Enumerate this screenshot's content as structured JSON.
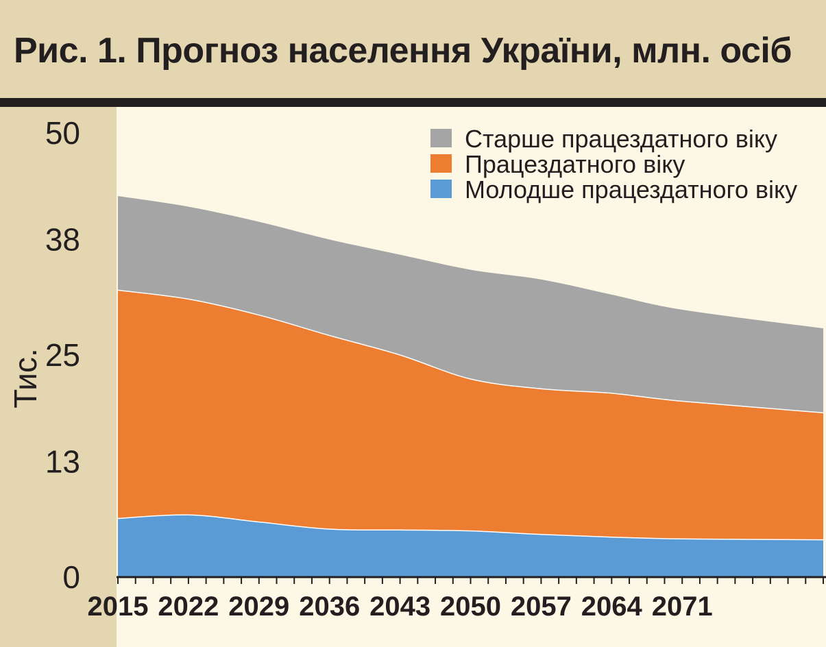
{
  "title": "Рис. 1. Прогноз населення України, млн. осіб",
  "chart_data": {
    "type": "area",
    "stacked": true,
    "title": "Рис. 1. Прогноз населення України, млн. осіб",
    "ylabel": "Тис.",
    "xlabel": "",
    "ylim": [
      0,
      50
    ],
    "y_ticks": [
      "0",
      "13",
      "25",
      "38",
      "50"
    ],
    "x_ticks": [
      "2015",
      "2022",
      "2029",
      "2036",
      "2043",
      "2050",
      "2057",
      "2064",
      "2071"
    ],
    "x": [
      2015,
      2022,
      2029,
      2036,
      2043,
      2050,
      2057,
      2064,
      2071,
      2085
    ],
    "series": [
      {
        "name": "Молодше працездатного віку",
        "color": "#5b9bd5",
        "values": [
          6.6,
          7.0,
          6.2,
          5.4,
          5.3,
          5.2,
          4.8,
          4.5,
          4.3,
          4.2
        ]
      },
      {
        "name": "Працездатного віку",
        "color": "#ed7d31",
        "values": [
          25.7,
          24.3,
          23.3,
          21.8,
          19.7,
          17.1,
          16.4,
          16.2,
          15.5,
          14.3
        ]
      },
      {
        "name": "Старше працездатного віку",
        "color": "#a5a5a5",
        "values": [
          10.6,
          10.4,
          10.5,
          10.8,
          11.3,
          12.3,
          12.3,
          11.1,
          10.3,
          9.5
        ]
      }
    ],
    "legend": {
      "placement": "top-right",
      "items": [
        {
          "label": "Старше працездатного віку",
          "color": "#a5a5a5"
        },
        {
          "label": "Працездатного віку",
          "color": "#ed7d31"
        },
        {
          "label": "Молодше працездатного віку",
          "color": "#5b9bd5"
        }
      ]
    },
    "grid": false
  }
}
